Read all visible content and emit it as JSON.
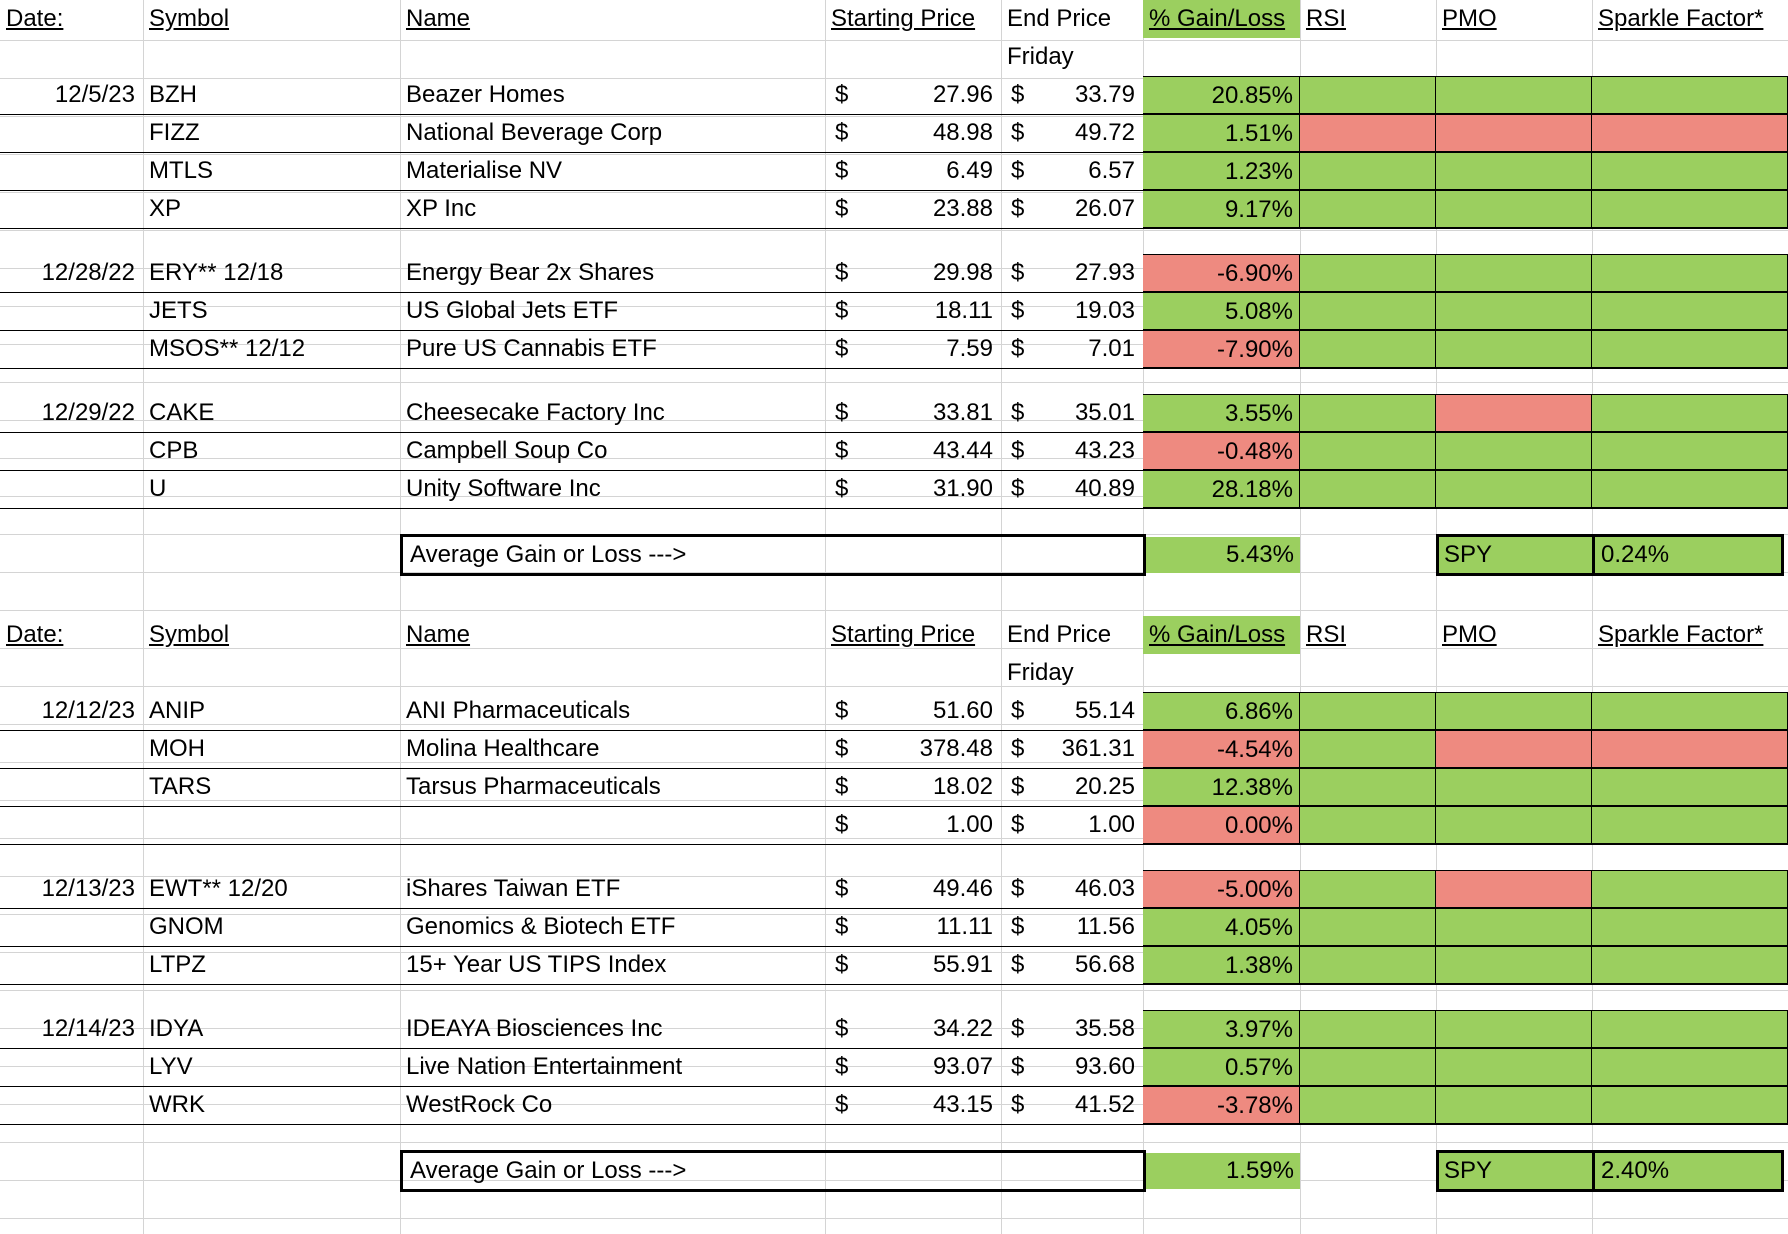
{
  "colors": {
    "gain": "#9bcf5f",
    "loss": "#ee8a80",
    "grid": "#d4d4d4"
  },
  "headers": {
    "date": "Date:",
    "symbol": "Symbol",
    "name": "Name",
    "start": "Starting Price",
    "end": "End Price",
    "gain": "% Gain/Loss",
    "rsi": "RSI",
    "pmo": "PMO",
    "spark": "Sparkle Factor*",
    "end_sub": "Friday"
  },
  "currency_symbol": "$",
  "avg_label": "Average Gain or Loss --->",
  "spy_label": "SPY",
  "sections": [
    {
      "average": "5.43%",
      "spy": "0.24%",
      "groups": [
        {
          "date": "12/5/23",
          "rows": [
            {
              "symbol": "BZH",
              "name": "Beazer Homes",
              "start": "27.96",
              "end": "33.79",
              "gain": "20.85%",
              "gain_status": "green",
              "rsi": "green",
              "pmo": "green",
              "spark": "green"
            },
            {
              "symbol": "FIZZ",
              "name": "National Beverage Corp",
              "start": "48.98",
              "end": "49.72",
              "gain": "1.51%",
              "gain_status": "green",
              "rsi": "red",
              "pmo": "red",
              "spark": "red"
            },
            {
              "symbol": "MTLS",
              "name": "Materialise NV",
              "start": "6.49",
              "end": "6.57",
              "gain": "1.23%",
              "gain_status": "green",
              "rsi": "green",
              "pmo": "green",
              "spark": "green"
            },
            {
              "symbol": "XP",
              "name": "XP Inc",
              "start": "23.88",
              "end": "26.07",
              "gain": "9.17%",
              "gain_status": "green",
              "rsi": "green",
              "pmo": "green",
              "spark": "green"
            }
          ]
        },
        {
          "date": "12/28/22",
          "rows": [
            {
              "symbol": "ERY** 12/18",
              "name": "Energy Bear 2x Shares",
              "start": "29.98",
              "end": "27.93",
              "gain": "-6.90%",
              "gain_status": "red",
              "rsi": "green",
              "pmo": "green",
              "spark": "green"
            },
            {
              "symbol": "JETS",
              "name": "US Global Jets ETF",
              "start": "18.11",
              "end": "19.03",
              "gain": "5.08%",
              "gain_status": "green",
              "rsi": "green",
              "pmo": "green",
              "spark": "green"
            },
            {
              "symbol": "MSOS** 12/12",
              "name": "Pure US Cannabis ETF",
              "start": "7.59",
              "end": "7.01",
              "gain": "-7.90%",
              "gain_status": "red",
              "rsi": "green",
              "pmo": "green",
              "spark": "green"
            }
          ]
        },
        {
          "date": "12/29/22",
          "rows": [
            {
              "symbol": "CAKE",
              "name": "Cheesecake Factory Inc",
              "start": "33.81",
              "end": "35.01",
              "gain": "3.55%",
              "gain_status": "green",
              "rsi": "green",
              "pmo": "red",
              "spark": "green"
            },
            {
              "symbol": "CPB",
              "name": "Campbell Soup Co",
              "start": "43.44",
              "end": "43.23",
              "gain": "-0.48%",
              "gain_status": "red",
              "rsi": "green",
              "pmo": "green",
              "spark": "green"
            },
            {
              "symbol": "U",
              "name": "Unity Software Inc",
              "start": "31.90",
              "end": "40.89",
              "gain": "28.18%",
              "gain_status": "green",
              "rsi": "green",
              "pmo": "green",
              "spark": "green"
            }
          ]
        }
      ]
    },
    {
      "average": "1.59%",
      "spy": "2.40%",
      "groups": [
        {
          "date": "12/12/23",
          "rows": [
            {
              "symbol": "ANIP",
              "name": "ANI Pharmaceuticals",
              "start": "51.60",
              "end": "55.14",
              "gain": "6.86%",
              "gain_status": "green",
              "rsi": "green",
              "pmo": "green",
              "spark": "green"
            },
            {
              "symbol": "MOH",
              "name": "Molina Healthcare",
              "start": "378.48",
              "end": "361.31",
              "gain": "-4.54%",
              "gain_status": "red",
              "rsi": "green",
              "pmo": "red",
              "spark": "red"
            },
            {
              "symbol": "TARS",
              "name": "Tarsus Pharmaceuticals",
              "start": "18.02",
              "end": "20.25",
              "gain": "12.38%",
              "gain_status": "green",
              "rsi": "green",
              "pmo": "green",
              "spark": "green"
            },
            {
              "symbol": "",
              "name": "",
              "start": "1.00",
              "end": "1.00",
              "gain": "0.00%",
              "gain_status": "red",
              "rsi": "green",
              "pmo": "green",
              "spark": "green"
            }
          ]
        },
        {
          "date": "12/13/23",
          "rows": [
            {
              "symbol": "EWT** 12/20",
              "name": "iShares Taiwan ETF",
              "start": "49.46",
              "end": "46.03",
              "gain": "-5.00%",
              "gain_status": "red",
              "rsi": "green",
              "pmo": "red",
              "spark": "green"
            },
            {
              "symbol": "GNOM",
              "name": "Genomics & Biotech ETF",
              "start": "11.11",
              "end": "11.56",
              "gain": "4.05%",
              "gain_status": "green",
              "rsi": "green",
              "pmo": "green",
              "spark": "green"
            },
            {
              "symbol": "LTPZ",
              "name": "15+ Year US TIPS Index",
              "start": "55.91",
              "end": "56.68",
              "gain": "1.38%",
              "gain_status": "green",
              "rsi": "green",
              "pmo": "green",
              "spark": "green"
            }
          ]
        },
        {
          "date": "12/14/23",
          "rows": [
            {
              "symbol": "IDYA",
              "name": "IDEAYA Biosciences Inc",
              "start": "34.22",
              "end": "35.58",
              "gain": "3.97%",
              "gain_status": "green",
              "rsi": "green",
              "pmo": "green",
              "spark": "green"
            },
            {
              "symbol": "LYV",
              "name": "Live Nation Entertainment",
              "start": "93.07",
              "end": "93.60",
              "gain": "0.57%",
              "gain_status": "green",
              "rsi": "green",
              "pmo": "green",
              "spark": "green"
            },
            {
              "symbol": "WRK",
              "name": "WestRock Co",
              "start": "43.15",
              "end": "41.52",
              "gain": "-3.78%",
              "gain_status": "red",
              "rsi": "green",
              "pmo": "green",
              "spark": "green"
            }
          ]
        }
      ]
    }
  ]
}
